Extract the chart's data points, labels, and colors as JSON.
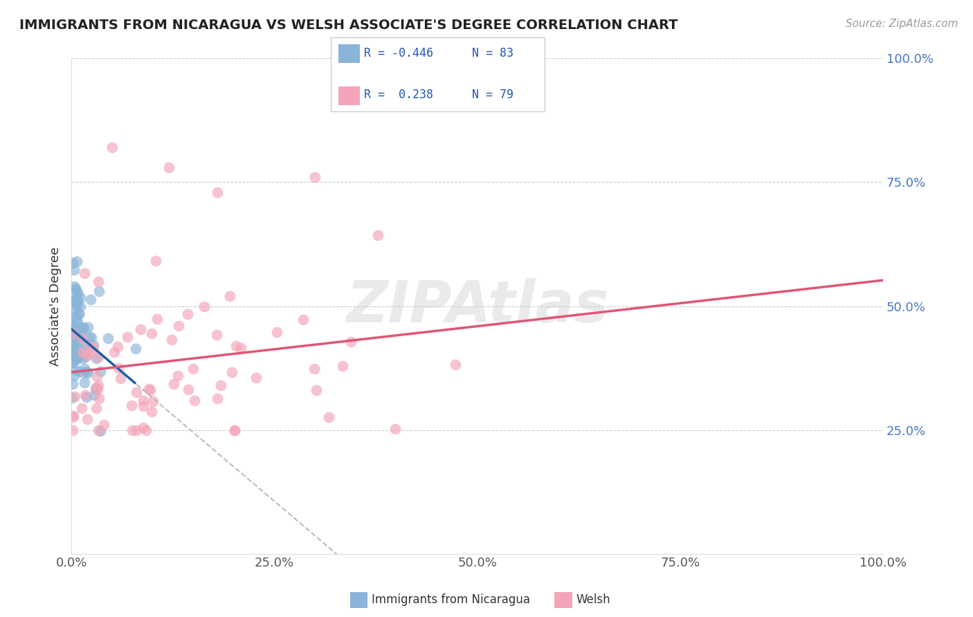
{
  "title": "IMMIGRANTS FROM NICARAGUA VS WELSH ASSOCIATE'S DEGREE CORRELATION CHART",
  "source_text": "Source: ZipAtlas.com",
  "ylabel": "Associate's Degree",
  "color_blue": "#8ab4d8",
  "color_pink": "#f4a4b8",
  "color_blue_line": "#1a5fa8",
  "color_pink_line": "#e05575",
  "color_gray_dashed": "#bbbbbb",
  "background_color": "#ffffff",
  "figsize": [
    14.06,
    8.92
  ],
  "dpi": 100
}
